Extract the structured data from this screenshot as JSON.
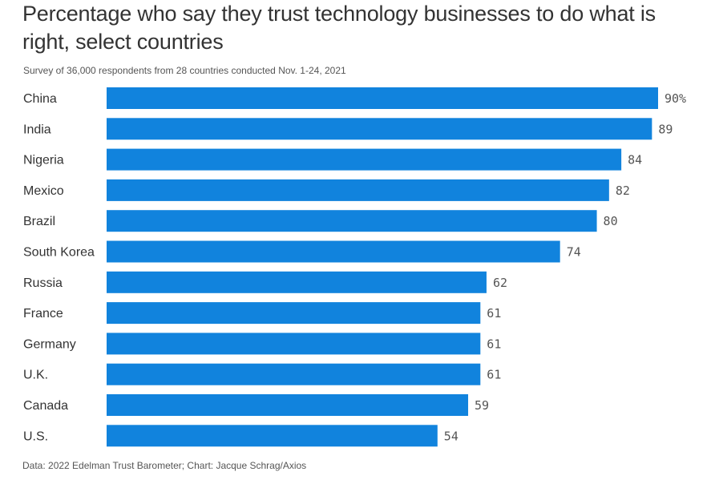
{
  "chart_data": {
    "type": "bar",
    "orientation": "horizontal",
    "title": "Percentage who say they trust technology businesses to do what is right, select countries",
    "subtitle": "Survey of 36,000 respondents from 28 countries conducted Nov. 1-24, 2021",
    "source": "Data: 2022 Edelman Trust Barometer; Chart: Jacque Schrag/Axios",
    "categories": [
      "China",
      "India",
      "Nigeria",
      "Mexico",
      "Brazil",
      "South Korea",
      "Russia",
      "France",
      "Germany",
      "U.K.",
      "Canada",
      "U.S."
    ],
    "values": [
      90,
      89,
      84,
      82,
      80,
      74,
      62,
      61,
      61,
      61,
      59,
      54
    ],
    "value_labels": [
      "90%",
      "89",
      "84",
      "82",
      "80",
      "74",
      "62",
      "61",
      "61",
      "61",
      "59",
      "54"
    ],
    "xlabel": "",
    "ylabel": "",
    "xlim": [
      0,
      90
    ],
    "grid": false,
    "legend": "none",
    "bar_color": "#1183dd"
  }
}
